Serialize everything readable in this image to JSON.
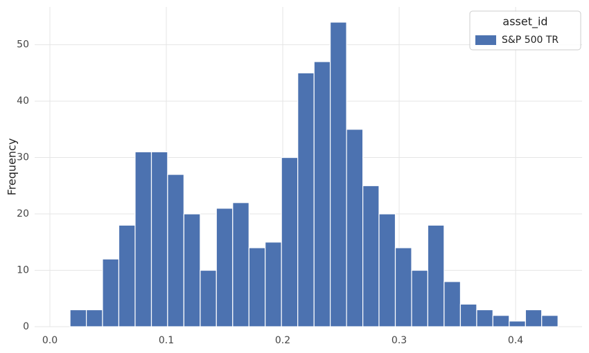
{
  "chart_data": {
    "type": "histogram",
    "y_label": "Frequency",
    "legend_title": "asset_id",
    "legend_position": "upper right",
    "series": [
      {
        "name": "S&P 500 TR",
        "color": "#4c72b0",
        "values": [
          3,
          3,
          12,
          18,
          31,
          31,
          27,
          20,
          10,
          21,
          22,
          14,
          15,
          30,
          45,
          47,
          54,
          35,
          25,
          20,
          14,
          10,
          18,
          8,
          4,
          3,
          2,
          1,
          3,
          2
        ]
      }
    ],
    "bins": [
      0.0173,
      0.0313,
      0.0452,
      0.0592,
      0.0732,
      0.0872,
      0.1011,
      0.1151,
      0.1291,
      0.143,
      0.157,
      0.171,
      0.1849,
      0.1989,
      0.2129,
      0.2269,
      0.2408,
      0.2548,
      0.2688,
      0.2827,
      0.2967,
      0.3107,
      0.3246,
      0.3386,
      0.3526,
      0.3666,
      0.3805,
      0.3945,
      0.4085,
      0.4224,
      0.4364
    ],
    "xlim": [
      -0.0131,
      0.4571
    ],
    "xticks": [
      {
        "value": 0,
        "label": "0.0"
      },
      0.1,
      0.2,
      0.3,
      0.4
    ],
    "ylim": [
      0,
      56.7
    ],
    "yticks": [
      0,
      10,
      20,
      30,
      40,
      50
    ],
    "grid": true
  }
}
